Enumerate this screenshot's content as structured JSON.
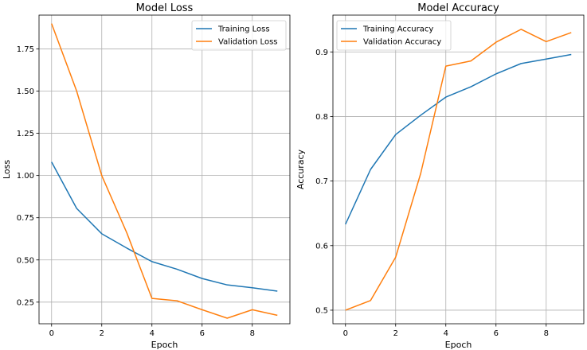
{
  "chart_data": [
    {
      "type": "line",
      "title": "Model Loss",
      "xlabel": "Epoch",
      "ylabel": "Loss",
      "x": [
        0,
        1,
        2,
        3,
        4,
        5,
        6,
        7,
        8,
        9
      ],
      "xticks": [
        "0",
        "2",
        "4",
        "6",
        "8"
      ],
      "yticks": [
        "0.25",
        "0.50",
        "0.75",
        "1.00",
        "1.25",
        "1.50",
        "1.75"
      ],
      "ylim": [
        0.122,
        1.95
      ],
      "xlim": [
        -0.5,
        9.5
      ],
      "grid": true,
      "legend": "upper right",
      "series": [
        {
          "name": "Training Loss",
          "color": "#1f77b4",
          "values": [
            1.08,
            0.805,
            0.655,
            0.57,
            0.49,
            0.445,
            0.39,
            0.352,
            0.335,
            0.315
          ]
        },
        {
          "name": "Validation Loss",
          "color": "#ff7f0e",
          "values": [
            1.9,
            1.5,
            1.0,
            0.66,
            0.272,
            0.258,
            0.205,
            0.155,
            0.205,
            0.172
          ]
        }
      ]
    },
    {
      "type": "line",
      "title": "Model Accuracy",
      "xlabel": "Epoch",
      "ylabel": "Accuracy",
      "x": [
        0,
        1,
        2,
        3,
        4,
        5,
        6,
        7,
        8,
        9
      ],
      "xticks": [
        "0",
        "2",
        "4",
        "6",
        "8"
      ],
      "yticks": [
        "0.5",
        "0.6",
        "0.7",
        "0.8",
        "0.9"
      ],
      "ylim": [
        0.479,
        0.957
      ],
      "xlim": [
        -0.5,
        9.5
      ],
      "grid": true,
      "legend": "upper left",
      "series": [
        {
          "name": "Training Accuracy",
          "color": "#1f77b4",
          "values": [
            0.633,
            0.718,
            0.772,
            0.802,
            0.83,
            0.846,
            0.866,
            0.882,
            0.889,
            0.896
          ]
        },
        {
          "name": "Validation Accuracy",
          "color": "#ff7f0e",
          "values": [
            0.5,
            0.515,
            0.582,
            0.712,
            0.878,
            0.886,
            0.915,
            0.935,
            0.916,
            0.93
          ]
        }
      ]
    }
  ]
}
